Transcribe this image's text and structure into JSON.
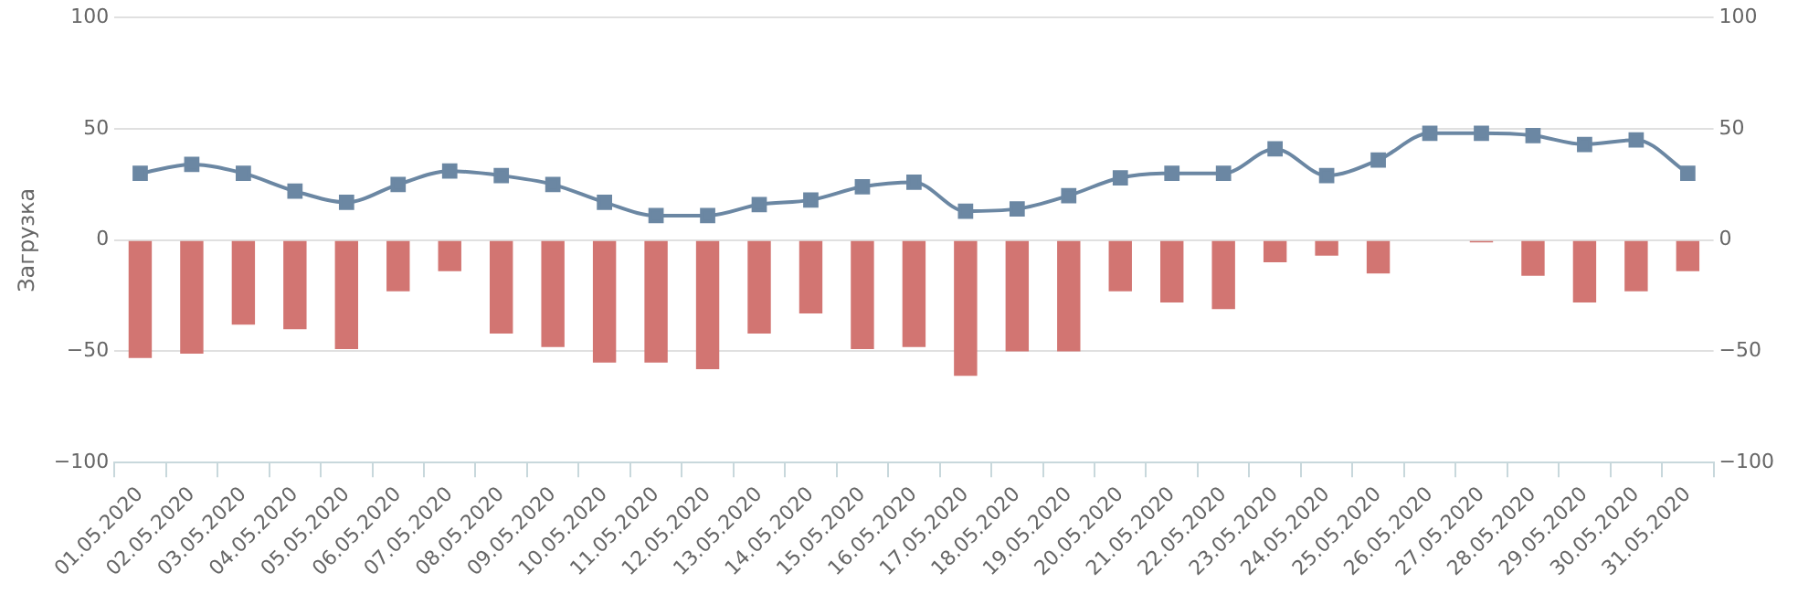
{
  "chart_data": {
    "type": "bar",
    "ylabel": "Загрузка",
    "categories": [
      "01.05.2020",
      "02.05.2020",
      "03.05.2020",
      "04.05.2020",
      "05.05.2020",
      "06.05.2020",
      "07.05.2020",
      "08.05.2020",
      "09.05.2020",
      "10.05.2020",
      "11.05.2020",
      "12.05.2020",
      "13.05.2020",
      "14.05.2020",
      "15.05.2020",
      "16.05.2020",
      "17.05.2020",
      "18.05.2020",
      "19.05.2020",
      "20.05.2020",
      "21.05.2020",
      "22.05.2020",
      "23.05.2020",
      "24.05.2020",
      "25.05.2020",
      "26.05.2020",
      "27.05.2020",
      "28.05.2020",
      "29.05.2020",
      "30.05.2020",
      "31.05.2020"
    ],
    "series": [
      {
        "color": "#d27572",
        "values": [
          -53,
          -51,
          -38,
          -40,
          -49,
          -23,
          -14,
          -42,
          -48,
          -55,
          -55,
          -58,
          -42,
          -33,
          -49,
          -48,
          -61,
          -50,
          -50,
          -23,
          -28,
          -31,
          -10,
          -7,
          -15,
          0,
          -1,
          -16,
          -28,
          -23,
          -14
        ]
      },
      {
        "type": "line",
        "color": "#6b87a3",
        "marker": "square",
        "values": [
          30,
          34,
          30,
          22,
          17,
          25,
          31,
          29,
          25,
          17,
          11,
          11,
          16,
          18,
          24,
          26,
          13,
          14,
          20,
          28,
          30,
          30,
          41,
          29,
          36,
          48,
          48,
          47,
          43,
          45,
          30
        ]
      }
    ],
    "ylim": [
      -100,
      100
    ],
    "yticks": [
      -100,
      -50,
      0,
      50,
      100
    ],
    "y2lim": [
      -100,
      100
    ],
    "y2ticks": [
      -100,
      -50,
      0,
      50,
      100
    ],
    "grid": "y",
    "legend": false
  }
}
